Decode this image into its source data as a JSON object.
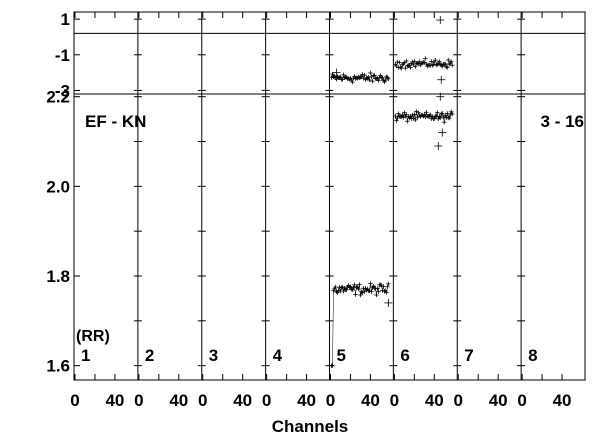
{
  "chart_data": {
    "type": "scatter",
    "xlabel": "Channels",
    "baseline": "EF - KN",
    "scan": "3 - 16",
    "polarization": "(RR)",
    "channel_ticks": [
      "0",
      "40"
    ],
    "channel_range": [
      0,
      62
    ],
    "phase_panel": {
      "ylim": [
        -3.2,
        1.4
      ],
      "yticks": [
        1,
        -1,
        -3
      ],
      "reference_line": 0.2
    },
    "amp_panel": {
      "ylim": [
        1.568,
        2.206
      ],
      "yticks": [
        1.6,
        1.8,
        2.0,
        2.2
      ]
    },
    "subbands": [
      {
        "label": "1",
        "has_data": false
      },
      {
        "label": "2",
        "has_data": false
      },
      {
        "label": "3",
        "has_data": false
      },
      {
        "label": "4",
        "has_data": false
      },
      {
        "label": "5",
        "has_data": true,
        "phase_mean": -2.3,
        "phase_spread": 0.25,
        "amp_start": 1.6,
        "amp_mean": 1.77,
        "amp_spread": 0.012
      },
      {
        "label": "6",
        "has_data": true,
        "phase_mean": -1.5,
        "phase_spread": 0.22,
        "amp_mean": 2.155,
        "amp_spread": 0.01
      },
      {
        "label": "7",
        "has_data": false
      },
      {
        "label": "8",
        "has_data": false
      }
    ]
  }
}
